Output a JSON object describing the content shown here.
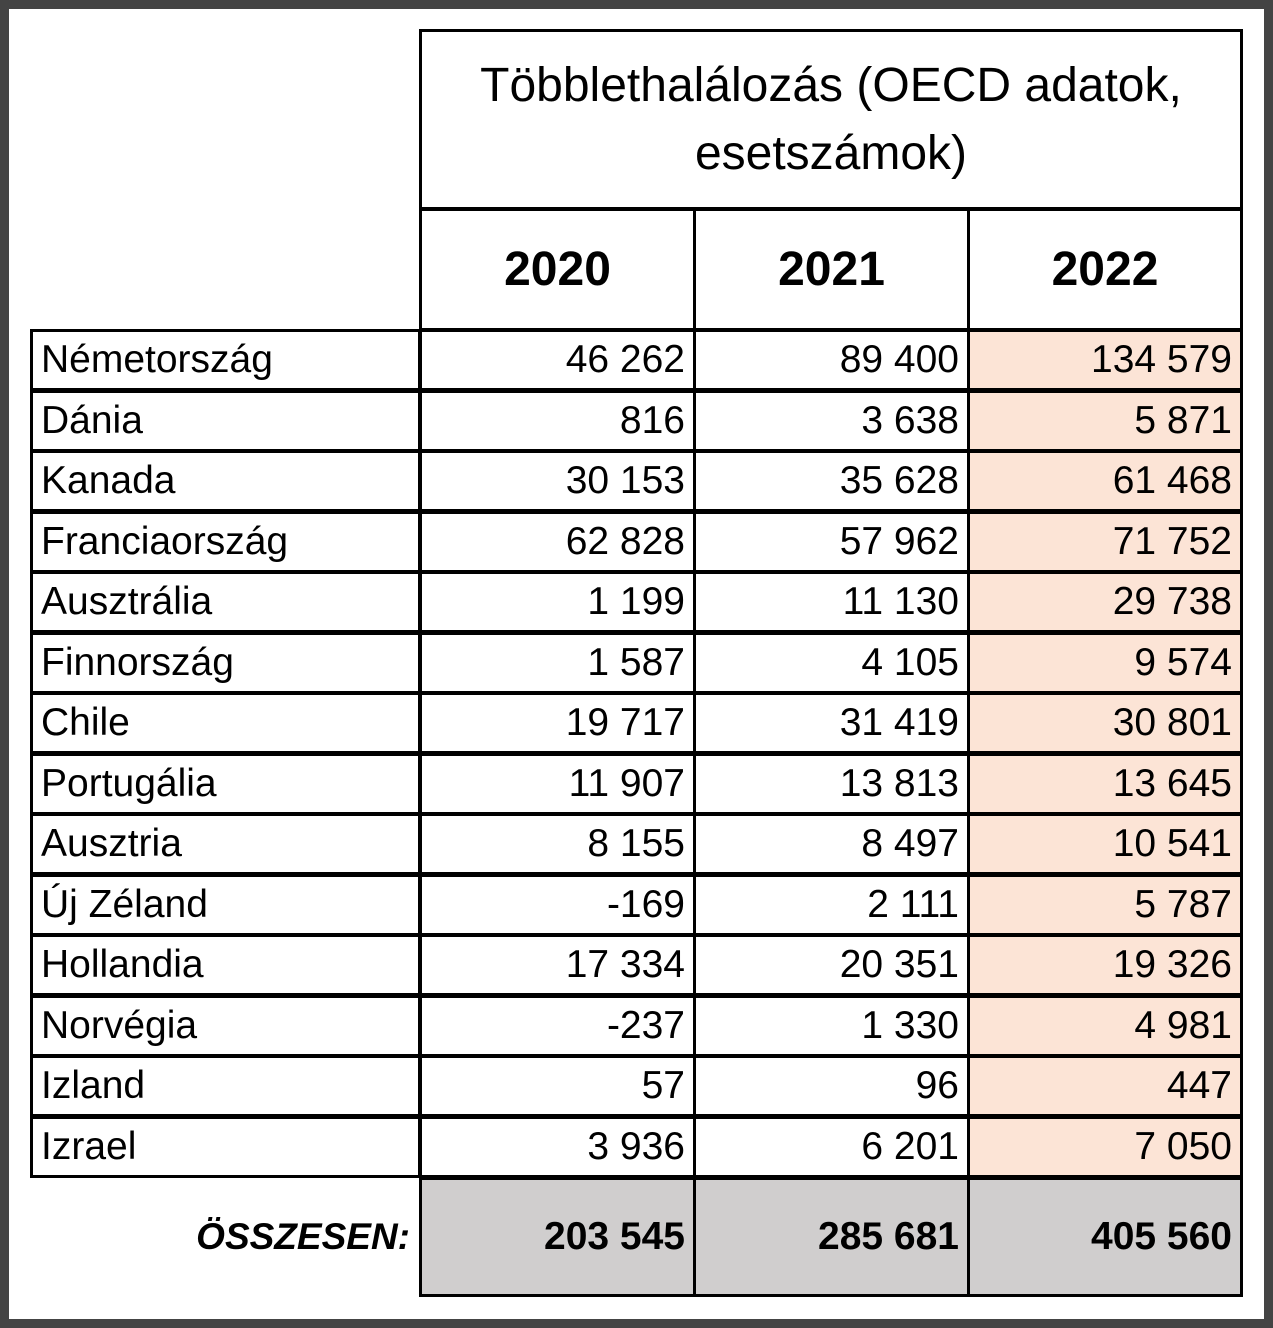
{
  "header": {
    "title": "Többlethalálozás (OECD adatok, esetszámok)"
  },
  "years": [
    "2020",
    "2021",
    "2022"
  ],
  "rows": [
    {
      "country": "Németország",
      "v2020": "46 262",
      "v2021": "89 400",
      "v2022": "134 579"
    },
    {
      "country": "Dánia",
      "v2020": "816",
      "v2021": "3 638",
      "v2022": "5 871"
    },
    {
      "country": "Kanada",
      "v2020": "30 153",
      "v2021": "35 628",
      "v2022": "61 468"
    },
    {
      "country": "Franciaország",
      "v2020": "62 828",
      "v2021": "57 962",
      "v2022": "71 752"
    },
    {
      "country": "Ausztrália",
      "v2020": "1 199",
      "v2021": "11 130",
      "v2022": "29 738"
    },
    {
      "country": "Finnország",
      "v2020": "1 587",
      "v2021": "4 105",
      "v2022": "9 574"
    },
    {
      "country": "Chile",
      "v2020": "19 717",
      "v2021": "31 419",
      "v2022": "30 801"
    },
    {
      "country": "Portugália",
      "v2020": "11 907",
      "v2021": "13 813",
      "v2022": "13 645"
    },
    {
      "country": "Ausztria",
      "v2020": "8 155",
      "v2021": "8 497",
      "v2022": "10 541"
    },
    {
      "country": "Új Zéland",
      "v2020": "-169",
      "v2021": "2 111",
      "v2022": "5 787"
    },
    {
      "country": "Hollandia",
      "v2020": "17 334",
      "v2021": "20 351",
      "v2022": "19 326"
    },
    {
      "country": "Norvégia",
      "v2020": "-237",
      "v2021": "1 330",
      "v2022": "4 981"
    },
    {
      "country": "Izland",
      "v2020": "57",
      "v2021": "96",
      "v2022": "447"
    },
    {
      "country": "Izrael",
      "v2020": "3 936",
      "v2021": "6 201",
      "v2022": "7 050"
    }
  ],
  "total": {
    "label": "ÖSSZESEN:",
    "v2020": "203 545",
    "v2021": "285 681",
    "v2022": "405 560"
  },
  "colors": {
    "highlight": "#fce4d6",
    "total_bg": "#d0cece",
    "frame": "#444444"
  }
}
